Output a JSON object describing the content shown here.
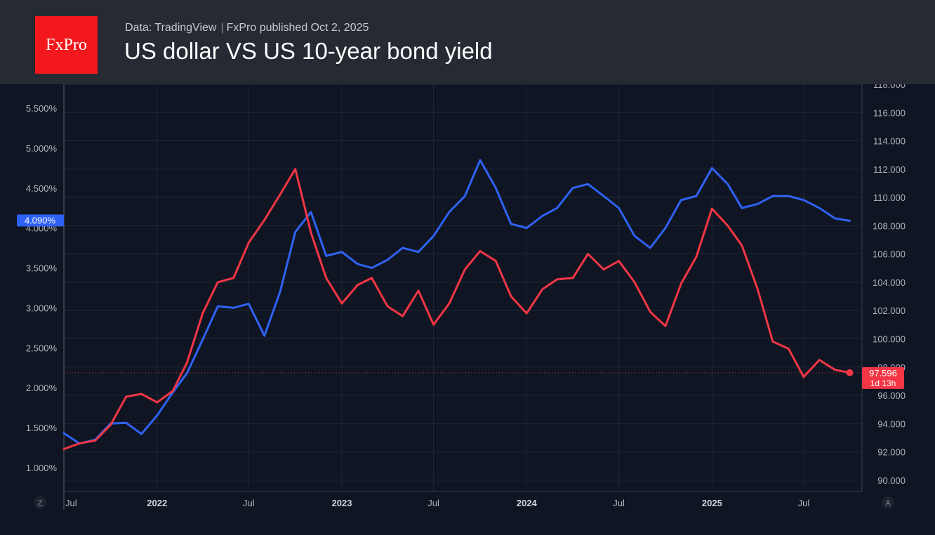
{
  "header": {
    "logo_text": "FxPro",
    "source_left": "Data: TradingView",
    "source_sep": "|",
    "source_right": "FxPro published Oct 2,  2025",
    "title": "US dollar VS US 10-year bond yield"
  },
  "colors": {
    "background": "#0f1522",
    "header_bg": "#262a33",
    "logo_bg": "#f2181d",
    "yield_line": "#2f62f4",
    "dollar_line": "#f23645",
    "grid": "#1f2634",
    "axis_text": "#b2b5be"
  },
  "chart_data": {
    "type": "line",
    "title": "US dollar VS US 10-year bond yield",
    "x_tick_labels": [
      "Jul",
      "2022",
      "Jul",
      "2023",
      "Jul",
      "2024",
      "Jul",
      "2025",
      "Jul"
    ],
    "x_tick_dates": [
      "2021-07-01",
      "2022-01-01",
      "2022-07-01",
      "2023-01-01",
      "2023-07-01",
      "2024-01-01",
      "2024-07-01",
      "2025-01-01",
      "2025-07-01"
    ],
    "x_range": [
      "2021-07-01",
      "2025-10-02"
    ],
    "left_axis": {
      "ticks": [
        "1.000%",
        "1.500%",
        "2.000%",
        "2.500%",
        "3.000%",
        "3.500%",
        "4.000%",
        "4.500%",
        "5.000%",
        "5.500%"
      ],
      "range": [
        0.7,
        5.8
      ],
      "unit": "%"
    },
    "right_axis": {
      "ticks": [
        "90.000",
        "92.000",
        "94.000",
        "96.000",
        "98.000",
        "100.000",
        "102.000",
        "104.000",
        "106.000",
        "108.000",
        "110.000",
        "112.000",
        "114.000",
        "116.000",
        "118.000"
      ],
      "range": [
        89.2,
        118.0
      ]
    },
    "grid": true,
    "corner_labels": {
      "left": "Z",
      "right": "A"
    },
    "last_value_labels": {
      "yield": "4.090%",
      "dollar": "97.596",
      "dollar_countdown": "1d 13h"
    },
    "series": [
      {
        "key": "yield",
        "axis": "left",
        "color": "#2f62f4",
        "points": [
          [
            "2021-07-01",
            1.43
          ],
          [
            "2021-08-01",
            1.3
          ],
          [
            "2021-09-01",
            1.35
          ],
          [
            "2021-10-01",
            1.55
          ],
          [
            "2021-11-01",
            1.56
          ],
          [
            "2021-12-01",
            1.42
          ],
          [
            "2022-01-01",
            1.65
          ],
          [
            "2022-02-01",
            1.94
          ],
          [
            "2022-03-01",
            2.18
          ],
          [
            "2022-04-01",
            2.6
          ],
          [
            "2022-05-01",
            3.02
          ],
          [
            "2022-06-01",
            3.0
          ],
          [
            "2022-07-01",
            3.05
          ],
          [
            "2022-08-01",
            2.65
          ],
          [
            "2022-09-01",
            3.2
          ],
          [
            "2022-10-01",
            3.95
          ],
          [
            "2022-11-01",
            4.2
          ],
          [
            "2022-12-01",
            3.65
          ],
          [
            "2023-01-01",
            3.7
          ],
          [
            "2023-02-01",
            3.55
          ],
          [
            "2023-03-01",
            3.5
          ],
          [
            "2023-04-01",
            3.6
          ],
          [
            "2023-05-01",
            3.75
          ],
          [
            "2023-06-01",
            3.7
          ],
          [
            "2023-07-01",
            3.9
          ],
          [
            "2023-08-01",
            4.2
          ],
          [
            "2023-09-01",
            4.4
          ],
          [
            "2023-10-01",
            4.85
          ],
          [
            "2023-11-01",
            4.5
          ],
          [
            "2023-12-01",
            4.05
          ],
          [
            "2024-01-01",
            4.0
          ],
          [
            "2024-02-01",
            4.15
          ],
          [
            "2024-03-01",
            4.25
          ],
          [
            "2024-04-01",
            4.5
          ],
          [
            "2024-05-01",
            4.55
          ],
          [
            "2024-06-01",
            4.4
          ],
          [
            "2024-07-01",
            4.25
          ],
          [
            "2024-08-01",
            3.9
          ],
          [
            "2024-09-01",
            3.75
          ],
          [
            "2024-10-01",
            4.0
          ],
          [
            "2024-11-01",
            4.35
          ],
          [
            "2024-12-01",
            4.4
          ],
          [
            "2025-01-01",
            4.75
          ],
          [
            "2025-02-01",
            4.55
          ],
          [
            "2025-03-01",
            4.25
          ],
          [
            "2025-04-01",
            4.3
          ],
          [
            "2025-05-01",
            4.4
          ],
          [
            "2025-06-01",
            4.4
          ],
          [
            "2025-07-01",
            4.35
          ],
          [
            "2025-08-01",
            4.25
          ],
          [
            "2025-09-01",
            4.12
          ],
          [
            "2025-09-30",
            4.09
          ]
        ]
      },
      {
        "key": "dollar",
        "axis": "right",
        "color": "#f23645",
        "points": [
          [
            "2021-07-01",
            92.2
          ],
          [
            "2021-08-01",
            92.6
          ],
          [
            "2021-09-01",
            92.8
          ],
          [
            "2021-10-01",
            93.9
          ],
          [
            "2021-11-01",
            95.9
          ],
          [
            "2021-12-01",
            96.1
          ],
          [
            "2022-01-01",
            95.5
          ],
          [
            "2022-02-01",
            96.3
          ],
          [
            "2022-03-01",
            98.3
          ],
          [
            "2022-04-01",
            101.8
          ],
          [
            "2022-05-01",
            104.0
          ],
          [
            "2022-06-01",
            104.3
          ],
          [
            "2022-07-01",
            106.8
          ],
          [
            "2022-08-01",
            108.4
          ],
          [
            "2022-09-01",
            110.2
          ],
          [
            "2022-10-01",
            112.0
          ],
          [
            "2022-11-01",
            107.5
          ],
          [
            "2022-12-01",
            104.3
          ],
          [
            "2023-01-01",
            102.5
          ],
          [
            "2023-02-01",
            103.8
          ],
          [
            "2023-03-01",
            104.3
          ],
          [
            "2023-04-01",
            102.3
          ],
          [
            "2023-05-01",
            101.6
          ],
          [
            "2023-06-01",
            103.4
          ],
          [
            "2023-07-01",
            101.0
          ],
          [
            "2023-08-01",
            102.5
          ],
          [
            "2023-09-01",
            104.9
          ],
          [
            "2023-10-01",
            106.2
          ],
          [
            "2023-11-01",
            105.5
          ],
          [
            "2023-12-01",
            103.0
          ],
          [
            "2024-01-01",
            101.8
          ],
          [
            "2024-02-01",
            103.5
          ],
          [
            "2024-03-01",
            104.2
          ],
          [
            "2024-04-01",
            104.3
          ],
          [
            "2024-05-01",
            106.0
          ],
          [
            "2024-06-01",
            104.9
          ],
          [
            "2024-07-01",
            105.5
          ],
          [
            "2024-08-01",
            104.0
          ],
          [
            "2024-09-01",
            101.9
          ],
          [
            "2024-10-01",
            100.9
          ],
          [
            "2024-11-01",
            103.9
          ],
          [
            "2024-12-01",
            105.8
          ],
          [
            "2025-01-01",
            109.2
          ],
          [
            "2025-02-01",
            108.0
          ],
          [
            "2025-03-01",
            106.6
          ],
          [
            "2025-04-01",
            103.5
          ],
          [
            "2025-05-01",
            99.8
          ],
          [
            "2025-06-01",
            99.3
          ],
          [
            "2025-07-01",
            97.3
          ],
          [
            "2025-08-01",
            98.5
          ],
          [
            "2025-09-01",
            97.8
          ],
          [
            "2025-09-30",
            97.6
          ]
        ]
      }
    ]
  }
}
